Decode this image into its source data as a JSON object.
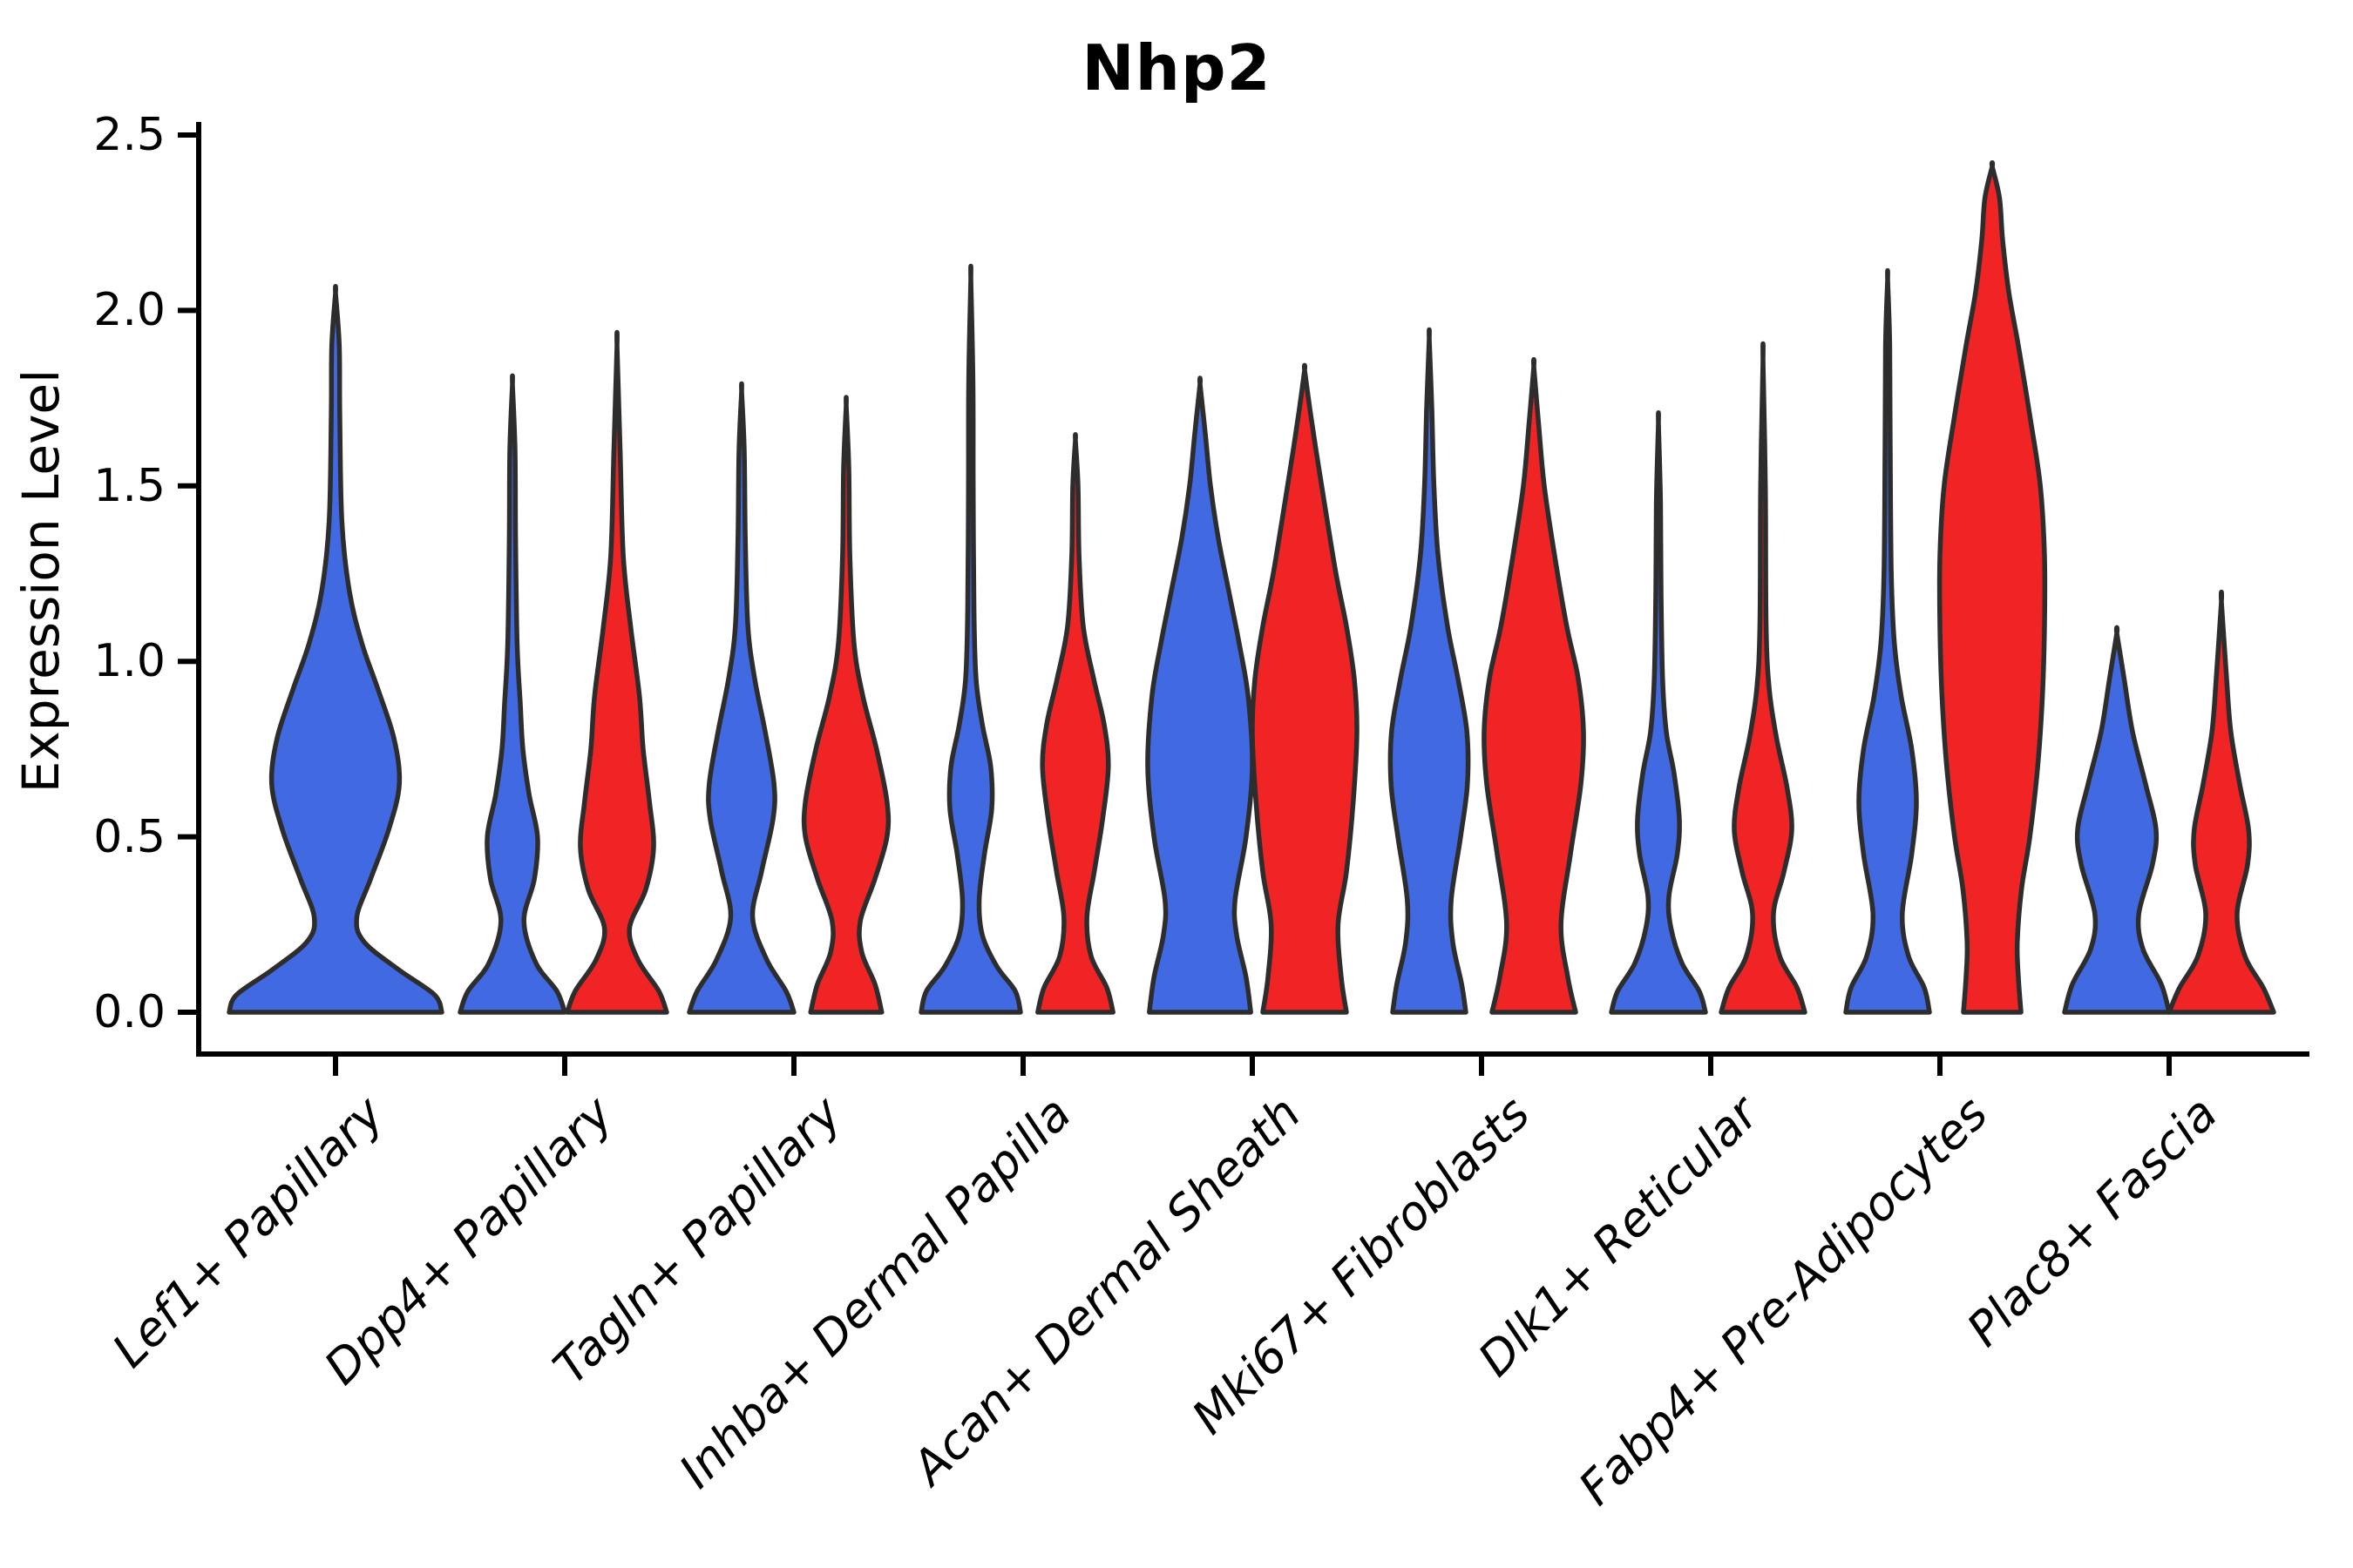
{
  "title": "Nhp2",
  "ylabel": "Expression Level",
  "colors": {
    "violin_blue": "#4169E1",
    "violin_red": "#F02424",
    "violin_outline": "#2D2D2D",
    "axis": "#000000"
  },
  "chart_data": {
    "type": "violin",
    "title": "Nhp2",
    "xlabel": "",
    "ylabel": "Expression Level",
    "ylim": [
      0,
      2.5
    ],
    "ytick_labels": [
      "0.0",
      "0.5",
      "1.0",
      "1.5",
      "2.0",
      "2.5"
    ],
    "grid": false,
    "legend": "none",
    "categories": [
      "Lef1+ Papillary",
      "Dpp4+ Papillary",
      "Tagln+ Papillary",
      "Inhba+ Dermal Papilla",
      "Acan+ Dermal Sheath",
      "Mki67+ Fibroblasts",
      "Dlk1+ Reticular",
      "Fabp4+ Pre-Adipocytes",
      "Plac8+ Fascia"
    ],
    "series": [
      {
        "name": "blue",
        "color": "#4169E1",
        "max_expression": [
          2.05,
          1.79,
          1.77,
          2.09,
          1.79,
          1.92,
          1.68,
          2.09,
          1.08
        ]
      },
      {
        "name": "red",
        "color": "#F02424",
        "max_expression": [
          null,
          1.9,
          1.73,
          1.63,
          1.83,
          1.84,
          1.86,
          2.41,
          1.17
        ]
      }
    ],
    "violins": [
      {
        "category_index": 0,
        "side": "blue",
        "single": true,
        "tip": 2.05,
        "profile": [
          [
            0,
            1.0
          ],
          [
            0.05,
            0.93
          ],
          [
            0.12,
            0.6
          ],
          [
            0.2,
            0.27
          ],
          [
            0.27,
            0.2
          ],
          [
            0.38,
            0.33
          ],
          [
            0.52,
            0.5
          ],
          [
            0.65,
            0.6
          ],
          [
            0.78,
            0.55
          ],
          [
            0.92,
            0.4
          ],
          [
            1.05,
            0.25
          ],
          [
            1.2,
            0.13
          ],
          [
            1.4,
            0.06
          ],
          [
            1.7,
            0.04
          ],
          [
            1.9,
            0.035
          ],
          [
            2.05,
            0
          ]
        ]
      },
      {
        "category_index": 1,
        "side": "blue",
        "single": false,
        "tip": 1.79,
        "profile": [
          [
            0,
            1.0
          ],
          [
            0.06,
            0.85
          ],
          [
            0.14,
            0.45
          ],
          [
            0.26,
            0.22
          ],
          [
            0.38,
            0.42
          ],
          [
            0.5,
            0.48
          ],
          [
            0.62,
            0.32
          ],
          [
            0.75,
            0.2
          ],
          [
            0.88,
            0.15
          ],
          [
            1.05,
            0.09
          ],
          [
            1.35,
            0.06
          ],
          [
            1.6,
            0.05
          ],
          [
            1.79,
            0
          ]
        ]
      },
      {
        "category_index": 1,
        "side": "red",
        "single": false,
        "tip": 1.9,
        "profile": [
          [
            0,
            0.95
          ],
          [
            0.06,
            0.8
          ],
          [
            0.15,
            0.4
          ],
          [
            0.24,
            0.24
          ],
          [
            0.35,
            0.55
          ],
          [
            0.47,
            0.7
          ],
          [
            0.6,
            0.62
          ],
          [
            0.75,
            0.5
          ],
          [
            0.9,
            0.43
          ],
          [
            1.1,
            0.26
          ],
          [
            1.3,
            0.12
          ],
          [
            1.6,
            0.06
          ],
          [
            1.9,
            0
          ]
        ]
      },
      {
        "category_index": 2,
        "side": "blue",
        "single": false,
        "tip": 1.77,
        "profile": [
          [
            0,
            1.0
          ],
          [
            0.06,
            0.85
          ],
          [
            0.15,
            0.48
          ],
          [
            0.27,
            0.21
          ],
          [
            0.4,
            0.38
          ],
          [
            0.55,
            0.6
          ],
          [
            0.65,
            0.62
          ],
          [
            0.8,
            0.45
          ],
          [
            0.95,
            0.25
          ],
          [
            1.1,
            0.12
          ],
          [
            1.35,
            0.07
          ],
          [
            1.6,
            0.05
          ],
          [
            1.77,
            0
          ]
        ]
      },
      {
        "category_index": 2,
        "side": "red",
        "single": false,
        "tip": 1.73,
        "profile": [
          [
            0,
            0.68
          ],
          [
            0.08,
            0.55
          ],
          [
            0.17,
            0.3
          ],
          [
            0.26,
            0.27
          ],
          [
            0.38,
            0.55
          ],
          [
            0.5,
            0.78
          ],
          [
            0.6,
            0.78
          ],
          [
            0.75,
            0.58
          ],
          [
            0.9,
            0.32
          ],
          [
            1.05,
            0.15
          ],
          [
            1.3,
            0.07
          ],
          [
            1.55,
            0.05
          ],
          [
            1.73,
            0
          ]
        ]
      },
      {
        "category_index": 3,
        "side": "blue",
        "single": false,
        "tip": 2.09,
        "profile": [
          [
            0,
            0.95
          ],
          [
            0.06,
            0.85
          ],
          [
            0.13,
            0.5
          ],
          [
            0.22,
            0.22
          ],
          [
            0.32,
            0.16
          ],
          [
            0.45,
            0.26
          ],
          [
            0.58,
            0.4
          ],
          [
            0.7,
            0.38
          ],
          [
            0.82,
            0.22
          ],
          [
            0.95,
            0.1
          ],
          [
            1.15,
            0.06
          ],
          [
            1.5,
            0.045
          ],
          [
            1.8,
            0.04
          ],
          [
            2.09,
            0
          ]
        ]
      },
      {
        "category_index": 3,
        "side": "red",
        "single": false,
        "tip": 1.63,
        "profile": [
          [
            0,
            0.72
          ],
          [
            0.07,
            0.6
          ],
          [
            0.16,
            0.3
          ],
          [
            0.27,
            0.22
          ],
          [
            0.4,
            0.36
          ],
          [
            0.55,
            0.52
          ],
          [
            0.7,
            0.63
          ],
          [
            0.82,
            0.55
          ],
          [
            0.95,
            0.35
          ],
          [
            1.1,
            0.15
          ],
          [
            1.3,
            0.07
          ],
          [
            1.5,
            0.05
          ],
          [
            1.63,
            0
          ]
        ]
      },
      {
        "category_index": 4,
        "side": "blue",
        "single": false,
        "tip": 1.79,
        "profile": [
          [
            0,
            0.97
          ],
          [
            0.1,
            0.88
          ],
          [
            0.22,
            0.7
          ],
          [
            0.32,
            0.67
          ],
          [
            0.5,
            0.88
          ],
          [
            0.7,
            1.0
          ],
          [
            0.9,
            0.92
          ],
          [
            1.05,
            0.75
          ],
          [
            1.2,
            0.55
          ],
          [
            1.35,
            0.35
          ],
          [
            1.5,
            0.2
          ],
          [
            1.65,
            0.1
          ],
          [
            1.79,
            0
          ]
        ]
      },
      {
        "category_index": 4,
        "side": "red",
        "single": false,
        "tip": 1.83,
        "profile": [
          [
            0,
            0.8
          ],
          [
            0.1,
            0.7
          ],
          [
            0.25,
            0.64
          ],
          [
            0.4,
            0.8
          ],
          [
            0.6,
            0.93
          ],
          [
            0.8,
            1.0
          ],
          [
            0.95,
            0.95
          ],
          [
            1.1,
            0.8
          ],
          [
            1.25,
            0.6
          ],
          [
            1.45,
            0.38
          ],
          [
            1.6,
            0.22
          ],
          [
            1.72,
            0.1
          ],
          [
            1.83,
            0
          ]
        ]
      },
      {
        "category_index": 5,
        "side": "blue",
        "single": false,
        "tip": 1.92,
        "profile": [
          [
            0,
            0.7
          ],
          [
            0.08,
            0.62
          ],
          [
            0.2,
            0.45
          ],
          [
            0.32,
            0.42
          ],
          [
            0.5,
            0.6
          ],
          [
            0.65,
            0.73
          ],
          [
            0.8,
            0.72
          ],
          [
            0.95,
            0.55
          ],
          [
            1.1,
            0.35
          ],
          [
            1.3,
            0.17
          ],
          [
            1.5,
            0.09
          ],
          [
            1.72,
            0.05
          ],
          [
            1.92,
            0
          ]
        ]
      },
      {
        "category_index": 5,
        "side": "red",
        "single": false,
        "tip": 1.84,
        "profile": [
          [
            0,
            0.8
          ],
          [
            0.1,
            0.65
          ],
          [
            0.25,
            0.52
          ],
          [
            0.45,
            0.7
          ],
          [
            0.65,
            0.9
          ],
          [
            0.8,
            0.95
          ],
          [
            0.95,
            0.85
          ],
          [
            1.1,
            0.63
          ],
          [
            1.3,
            0.4
          ],
          [
            1.5,
            0.2
          ],
          [
            1.68,
            0.09
          ],
          [
            1.84,
            0
          ]
        ]
      },
      {
        "category_index": 6,
        "side": "blue",
        "single": false,
        "tip": 1.68,
        "profile": [
          [
            0,
            0.9
          ],
          [
            0.06,
            0.78
          ],
          [
            0.14,
            0.45
          ],
          [
            0.24,
            0.24
          ],
          [
            0.33,
            0.2
          ],
          [
            0.45,
            0.36
          ],
          [
            0.55,
            0.4
          ],
          [
            0.68,
            0.3
          ],
          [
            0.8,
            0.15
          ],
          [
            0.95,
            0.08
          ],
          [
            1.2,
            0.05
          ],
          [
            1.45,
            0.04
          ],
          [
            1.68,
            0
          ]
        ]
      },
      {
        "category_index": 6,
        "side": "red",
        "single": false,
        "tip": 1.86,
        "profile": [
          [
            0,
            0.8
          ],
          [
            0.07,
            0.65
          ],
          [
            0.16,
            0.32
          ],
          [
            0.28,
            0.2
          ],
          [
            0.4,
            0.4
          ],
          [
            0.52,
            0.55
          ],
          [
            0.64,
            0.46
          ],
          [
            0.78,
            0.26
          ],
          [
            0.92,
            0.12
          ],
          [
            1.1,
            0.06
          ],
          [
            1.5,
            0.045
          ],
          [
            1.86,
            0
          ]
        ]
      },
      {
        "category_index": 7,
        "side": "blue",
        "single": false,
        "tip": 2.09,
        "profile": [
          [
            0,
            0.8
          ],
          [
            0.07,
            0.7
          ],
          [
            0.16,
            0.4
          ],
          [
            0.28,
            0.28
          ],
          [
            0.45,
            0.46
          ],
          [
            0.6,
            0.55
          ],
          [
            0.75,
            0.46
          ],
          [
            0.9,
            0.26
          ],
          [
            1.05,
            0.13
          ],
          [
            1.25,
            0.07
          ],
          [
            1.6,
            0.05
          ],
          [
            1.9,
            0.04
          ],
          [
            2.09,
            0
          ]
        ]
      },
      {
        "category_index": 7,
        "side": "red",
        "single": false,
        "tip": 2.41,
        "profile": [
          [
            0,
            0.55
          ],
          [
            0.1,
            0.5
          ],
          [
            0.2,
            0.48
          ],
          [
            0.35,
            0.56
          ],
          [
            0.5,
            0.72
          ],
          [
            0.7,
            0.87
          ],
          [
            0.9,
            0.96
          ],
          [
            1.1,
            1.0
          ],
          [
            1.3,
            1.0
          ],
          [
            1.5,
            0.92
          ],
          [
            1.7,
            0.72
          ],
          [
            1.9,
            0.5
          ],
          [
            2.05,
            0.32
          ],
          [
            2.2,
            0.2
          ],
          [
            2.32,
            0.14
          ],
          [
            2.41,
            0
          ]
        ]
      },
      {
        "category_index": 8,
        "side": "blue",
        "single": false,
        "tip": 1.08,
        "profile": [
          [
            0,
            1.0
          ],
          [
            0.08,
            0.85
          ],
          [
            0.18,
            0.5
          ],
          [
            0.28,
            0.42
          ],
          [
            0.42,
            0.68
          ],
          [
            0.52,
            0.75
          ],
          [
            0.65,
            0.55
          ],
          [
            0.8,
            0.3
          ],
          [
            0.95,
            0.14
          ],
          [
            1.08,
            0
          ]
        ]
      },
      {
        "category_index": 8,
        "side": "red",
        "single": false,
        "tip": 1.17,
        "profile": [
          [
            0,
            1.0
          ],
          [
            0.07,
            0.8
          ],
          [
            0.16,
            0.45
          ],
          [
            0.28,
            0.3
          ],
          [
            0.42,
            0.5
          ],
          [
            0.52,
            0.52
          ],
          [
            0.65,
            0.35
          ],
          [
            0.8,
            0.18
          ],
          [
            0.95,
            0.1
          ],
          [
            1.17,
            0
          ]
        ]
      }
    ]
  }
}
